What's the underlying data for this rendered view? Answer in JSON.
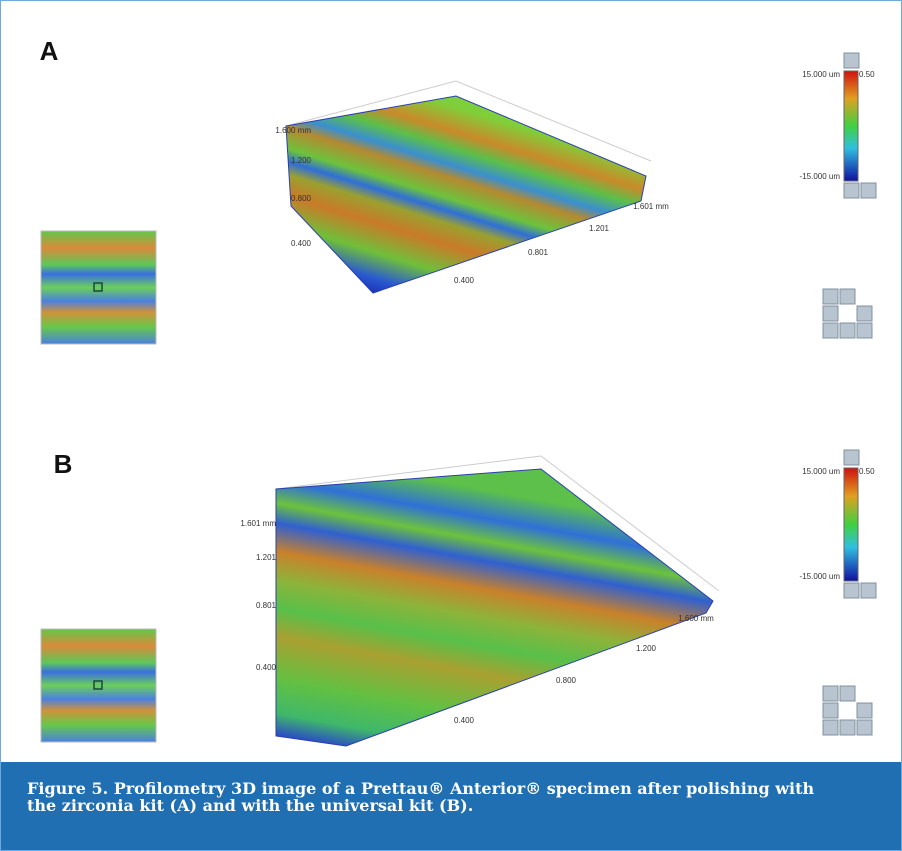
{
  "panels": [
    {
      "label": "A",
      "y_axis_labels": [
        "1.600 mm",
        "1.200",
        "0.800",
        "0.400"
      ],
      "x_axis_labels": [
        "0.400",
        "0.801",
        "1.201",
        "1.601 mm"
      ],
      "colorbar": {
        "max": "15.000 um",
        "value": "0.50",
        "min": "-15.000 um"
      }
    },
    {
      "label": "B",
      "y_axis_labels": [
        "1.601 mm",
        "1.201",
        "0.801",
        "0.400"
      ],
      "x_axis_labels": [
        "0.400",
        "0.800",
        "1.200",
        "1.600 mm"
      ],
      "colorbar": {
        "max": "15.000 um",
        "value": "0.50",
        "min": "-15.000 um"
      }
    }
  ],
  "caption": "Figure 5. Profilometry 3D image of a Prettau® Anterior® specimen after polishing with the zirconia kit (A) and with the universal kit (B)."
}
